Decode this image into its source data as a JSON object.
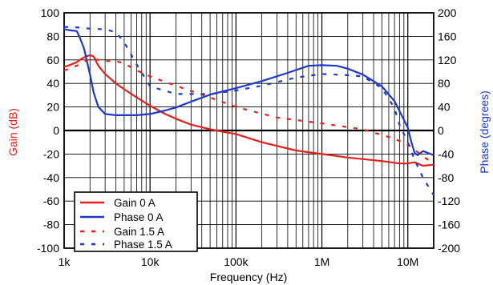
{
  "chart_data": {
    "type": "line",
    "xlabel": "Frequency (Hz)",
    "ylabel_left": "Gain (dB)",
    "ylabel_right": "Phase (degrees)",
    "x_scale": "log",
    "xlim": [
      1000,
      20000000
    ],
    "ylim_left": [
      -100,
      100
    ],
    "ylim_right": [
      -200,
      200
    ],
    "x_ticks": [
      {
        "value": 1000,
        "label": "1k"
      },
      {
        "value": 10000,
        "label": "10k"
      },
      {
        "value": 100000,
        "label": "100k"
      },
      {
        "value": 1000000,
        "label": "1M"
      },
      {
        "value": 10000000,
        "label": "10M"
      }
    ],
    "y_left_ticks": [
      100,
      80,
      60,
      40,
      20,
      0,
      -20,
      -40,
      -60,
      -80,
      -100
    ],
    "y_left_tick_labels": [
      "100",
      "80",
      "60",
      "40",
      "20",
      "0",
      "-20",
      "-40",
      "-60",
      "-80",
      "-100"
    ],
    "y_right_ticks": [
      200,
      160,
      120,
      80,
      40,
      0,
      -40,
      -80,
      -120,
      -160,
      -200
    ],
    "y_right_tick_labels": [
      "200",
      "160",
      "120",
      "80",
      "40",
      "0",
      "-40",
      "-80",
      "-120",
      "-160",
      "-200"
    ],
    "grid": true,
    "legend_position": "bottom-left",
    "colors": {
      "gain": "#e8201c",
      "phase": "#1c38d0",
      "left_axis_label": "#e8201c",
      "right_axis_label": "#1c38d0"
    },
    "series": [
      {
        "name": "Gain 0 A",
        "axis": "left",
        "style": "solid",
        "color": "#e8201c",
        "x": [
          1000,
          1200,
          1400,
          1600,
          1800,
          2000,
          2200,
          2500,
          3000,
          4000,
          5000,
          7000,
          10000,
          15000,
          20000,
          30000,
          50000,
          70000,
          100000,
          200000,
          500000,
          1000000,
          2000000,
          5000000,
          8000000,
          10000000,
          12000000,
          15000000,
          20000000
        ],
        "y": [
          54,
          56,
          58,
          61,
          63,
          64,
          63,
          55,
          48,
          40,
          35,
          28,
          21,
          14,
          10,
          5,
          1,
          -1,
          -3,
          -10,
          -17,
          -20,
          -23,
          -26,
          -28,
          -28,
          -27,
          -30,
          -29
        ]
      },
      {
        "name": "Phase 0 A",
        "axis": "right",
        "style": "solid",
        "color": "#1c38d0",
        "x": [
          1000,
          1200,
          1400,
          1500,
          1700,
          2000,
          2200,
          2500,
          3000,
          4000,
          5000,
          7000,
          10000,
          15000,
          20000,
          30000,
          50000,
          100000,
          200000,
          400000,
          700000,
          1000000,
          1500000,
          2000000,
          3000000,
          5000000,
          7000000,
          10000000,
          11000000,
          12000000,
          13000000,
          15000000,
          17000000,
          20000000
        ],
        "y": [
          172,
          170,
          169,
          160,
          140,
          95,
          65,
          40,
          28,
          26,
          26,
          26,
          28,
          34,
          39,
          49,
          61,
          72,
          84,
          98,
          110,
          111,
          110,
          105,
          95,
          75,
          50,
          5,
          -20,
          -38,
          -42,
          -35,
          -38,
          -42
        ]
      },
      {
        "name": "Gain 1.5 A",
        "axis": "left",
        "style": "dashed",
        "color": "#e8201c",
        "x": [
          1000,
          1200,
          1500,
          2000,
          2500,
          3000,
          4000,
          5000,
          7000,
          10000,
          20000,
          50000,
          100000,
          300000,
          1000000,
          3000000,
          7000000,
          10000000,
          15000000,
          20000000
        ],
        "y": [
          51,
          53,
          56,
          61,
          60,
          59,
          59,
          57,
          51,
          46,
          38,
          28,
          20,
          11,
          6,
          1,
          -7,
          -12,
          -22,
          -28
        ]
      },
      {
        "name": "Phase 1.5 A",
        "axis": "right",
        "style": "dashed",
        "color": "#1c38d0",
        "x": [
          1000,
          1500,
          2000,
          3000,
          4000,
          5000,
          7000,
          10000,
          20000,
          50000,
          100000,
          200000,
          500000,
          1000000,
          2000000,
          3000000,
          5000000,
          7000000,
          8000000,
          10000000,
          12000000,
          15000000,
          20000000
        ],
        "y": [
          176,
          175,
          173,
          172,
          167,
          150,
          112,
          75,
          62,
          62,
          68,
          76,
          90,
          96,
          94,
          92,
          72,
          38,
          10,
          -20,
          -50,
          -80,
          -110
        ]
      }
    ]
  }
}
